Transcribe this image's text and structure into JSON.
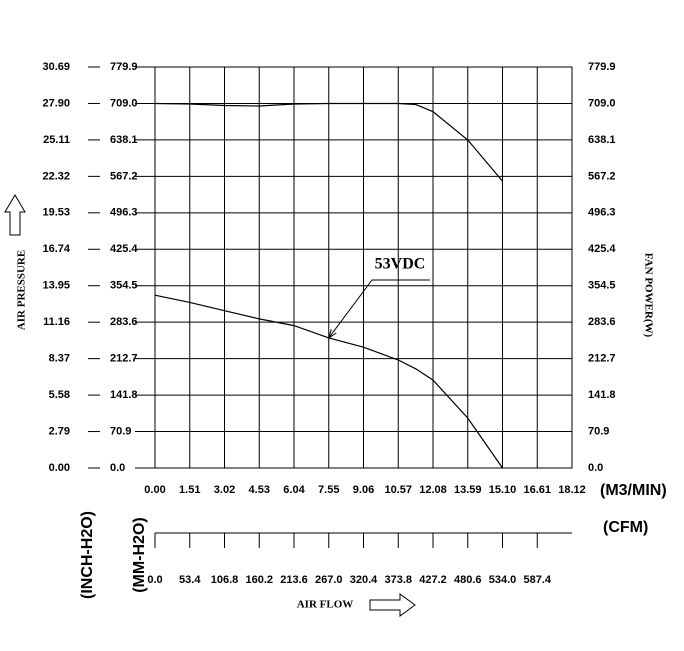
{
  "chart_data": {
    "type": "line",
    "x": [
      0,
      1.51,
      3.02,
      4.53,
      6.04,
      7.55,
      9.06,
      10.57,
      11.33,
      12.08,
      13.59,
      15.1
    ],
    "series": [
      {
        "color": "#000000",
        "values": [
          336,
          322,
          306,
          290,
          277,
          253,
          235,
          210,
          193,
          171,
          97,
          0
        ]
      },
      {
        "color": "#000000",
        "axis": "y2",
        "values": [
          709,
          708,
          705,
          704,
          708,
          709,
          709,
          709,
          707,
          693,
          638,
          558
        ]
      }
    ],
    "annotation": "53VDC",
    "xlabel": "(M3/MIN)",
    "xlim": [
      0,
      18.12
    ],
    "xticks": [
      {
        "value": 0,
        "label": "0.00"
      },
      1.51,
      3.02,
      4.53,
      6.04,
      7.55,
      9.06,
      10.57,
      12.08,
      13.59,
      {
        "value": 15.1,
        "label": "15.10"
      },
      16.61,
      18.12
    ],
    "x2label": "(CFM)",
    "x2lim": [
      0,
      640.8
    ],
    "x2ticks": [
      {
        "value": 0,
        "label": "0.0"
      },
      53.4,
      106.8,
      160.2,
      213.6,
      {
        "value": 267,
        "label": "267.0"
      },
      320.4,
      373.8,
      427.2,
      480.6,
      {
        "value": 534,
        "label": "534.0"
      },
      587.4
    ],
    "flow_label": "AIR FLOW",
    "pressure_label": "AIR PRESSURE",
    "ylabel": "(MM-H2O)",
    "ylim": [
      0,
      779.9
    ],
    "yticks": [
      {
        "value": 0,
        "label": "0.0"
      },
      70.9,
      141.8,
      212.7,
      283.6,
      354.5,
      425.4,
      496.3,
      567.2,
      638.1,
      {
        "value": 709,
        "label": "709.0"
      },
      779.9
    ],
    "y_inch": {
      "label": "(INCH-H2O)",
      "lim": [
        0,
        30.69
      ],
      "ticks": [
        {
          "value": 0,
          "label": "0.00"
        },
        2.79,
        5.58,
        8.37,
        11.16,
        13.95,
        16.74,
        19.53,
        22.32,
        25.11,
        {
          "value": 27.9,
          "label": "27.90"
        },
        30.69
      ]
    },
    "y2label": "FAN POWER(W)",
    "y2lim": [
      0,
      779.9
    ],
    "y2ticks": [
      {
        "value": 0,
        "label": "0.0"
      },
      70.9,
      141.8,
      212.7,
      283.6,
      354.5,
      425.4,
      496.3,
      567.2,
      638.1,
      {
        "value": 709,
        "label": "709.0"
      },
      779.9
    ],
    "grid": true
  }
}
